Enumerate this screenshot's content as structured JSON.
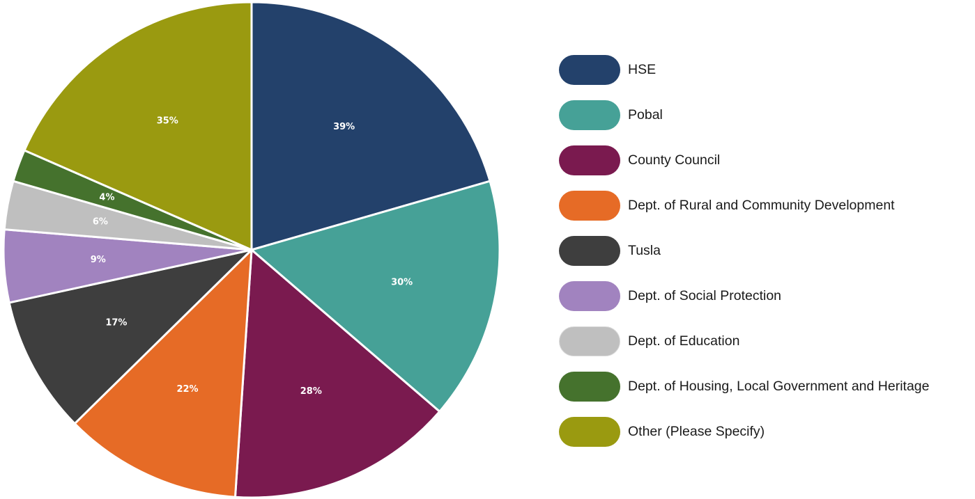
{
  "chart_data": {
    "type": "pie",
    "title": "",
    "categories": [
      "HSE",
      "Pobal",
      "County Council",
      "Dept. of Rural and Community Development",
      "Tusla",
      "Dept. of Social Protection",
      "Dept. of Education",
      "Dept. of Housing, Local Government and Heritage",
      "Other (Please Specify)"
    ],
    "values": [
      39,
      30,
      28,
      22,
      17,
      9,
      6,
      4,
      35
    ],
    "labels": [
      "39%",
      "30%",
      "28%",
      "22%",
      "17%",
      "9%",
      "6%",
      "4%",
      "35%"
    ],
    "colors": [
      "#23416b",
      "#46a197",
      "#7a1a4f",
      "#e66b26",
      "#3e3e3e",
      "#a183bf",
      "#bfbfbf",
      "#45722d",
      "#9a9a10"
    ],
    "start": "12 o'clock",
    "direction": "clockwise",
    "legend_position": "right"
  }
}
